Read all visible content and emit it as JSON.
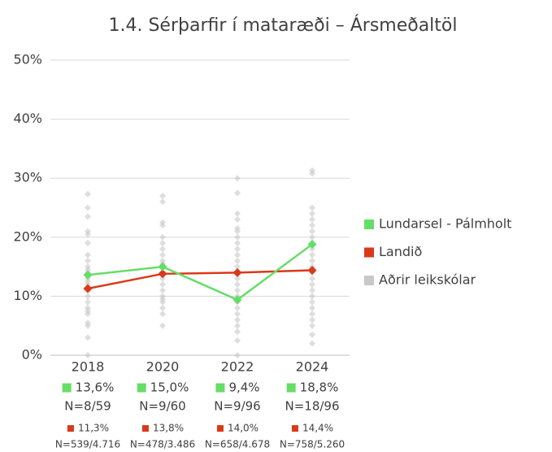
{
  "chart_data": {
    "type": "line",
    "title": "1.4. Sérþarfir í mataræði – Ársmeðaltöl",
    "categories": [
      "2018",
      "2020",
      "2022",
      "2024"
    ],
    "ylim": [
      0,
      50
    ],
    "yticks": [
      {
        "value": 0,
        "label": "0%"
      },
      {
        "value": 10,
        "label": "10%"
      },
      {
        "value": 20,
        "label": "20%"
      },
      {
        "value": 30,
        "label": "30%"
      },
      {
        "value": 40,
        "label": "40%"
      },
      {
        "value": 50,
        "label": "50%"
      }
    ],
    "grid": true,
    "legend": "right",
    "series": [
      {
        "name": "Lundarsel - Pálmholt",
        "color": "#66dd66",
        "values": [
          13.6,
          15.0,
          9.4,
          18.8
        ],
        "value_labels": [
          "13,6%",
          "15,0%",
          "9,4%",
          "18,8%"
        ],
        "n": [
          "N=8/59",
          "N=9/60",
          "N=9/96",
          "N=18/96"
        ]
      },
      {
        "name": "Landið",
        "color": "#d9391a",
        "values": [
          11.3,
          13.8,
          14.0,
          14.4
        ],
        "value_labels": [
          "11,3%",
          "13,8%",
          "14,0%",
          "14,4%"
        ],
        "n": [
          "N=539/4.716",
          "N=478/3.486",
          "N=658/4.678",
          "N=758/5.260"
        ]
      },
      {
        "name": "Aðrir leikskólar",
        "color": "#c8c8c8",
        "values": [
          [
            27.3,
            25,
            23.5,
            21,
            20.5,
            19,
            17,
            16,
            15,
            14.5,
            14,
            13,
            12.5,
            12,
            11,
            10,
            9,
            8,
            7.5,
            7,
            5.5,
            5,
            3,
            0
          ],
          [
            27,
            26,
            22.5,
            22,
            20,
            19,
            18,
            17,
            16,
            15.5,
            15,
            14,
            13,
            12,
            11,
            10,
            9.5,
            9,
            8,
            7,
            5
          ],
          [
            30,
            27.5,
            24,
            23,
            21.5,
            21,
            20,
            19,
            18,
            17,
            16,
            15,
            14,
            13,
            12,
            11,
            10,
            9,
            8,
            7,
            6,
            5,
            4,
            2.5,
            0
          ],
          [
            31.3,
            30.8,
            25,
            24,
            23,
            22,
            21,
            20,
            19,
            18,
            17,
            16,
            15,
            14,
            13,
            12,
            11,
            10,
            9,
            8,
            7,
            6,
            5,
            3.5,
            2
          ]
        ]
      }
    ]
  }
}
